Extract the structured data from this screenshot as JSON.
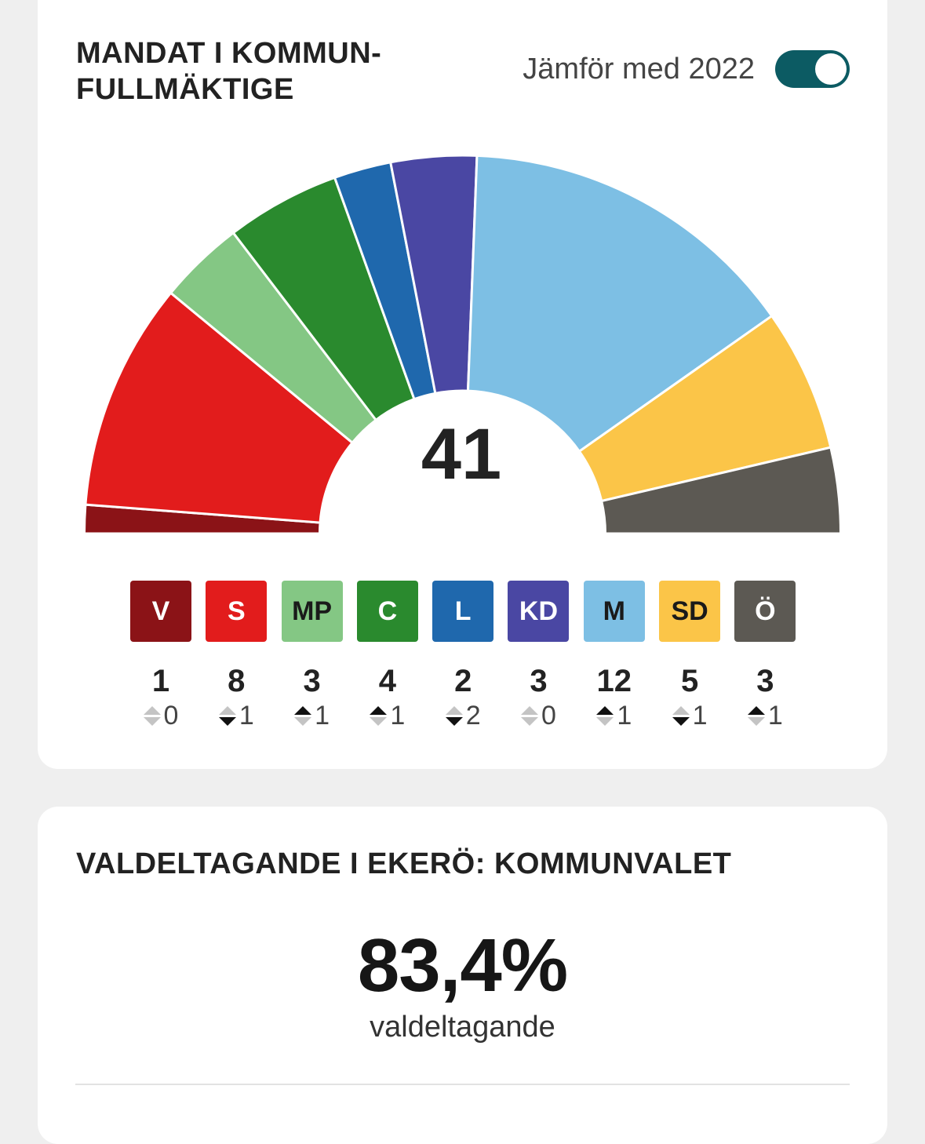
{
  "card1": {
    "title": "MANDAT I KOMMUN-FULLMÄKTIGE",
    "compare_label": "Jämför med 2022",
    "compare_on": true,
    "toggle_color": "#0c5b63"
  },
  "chart_data": {
    "type": "parliament",
    "total_seats": "41",
    "parties": [
      {
        "name": "V",
        "seats": 1,
        "change": "0",
        "direction": "none",
        "color": "#8b1317",
        "text_color": "#ffffff"
      },
      {
        "name": "S",
        "seats": 8,
        "change": "1",
        "direction": "down",
        "color": "#e21c1c",
        "text_color": "#ffffff"
      },
      {
        "name": "MP",
        "seats": 3,
        "change": "1",
        "direction": "up",
        "color": "#84c784",
        "text_color": "#1a1a1a"
      },
      {
        "name": "C",
        "seats": 4,
        "change": "1",
        "direction": "up",
        "color": "#2a8a2e",
        "text_color": "#ffffff"
      },
      {
        "name": "L",
        "seats": 2,
        "change": "2",
        "direction": "down",
        "color": "#1f68ad",
        "text_color": "#ffffff"
      },
      {
        "name": "KD",
        "seats": 3,
        "change": "0",
        "direction": "none",
        "color": "#4a47a3",
        "text_color": "#ffffff"
      },
      {
        "name": "M",
        "seats": 12,
        "change": "1",
        "direction": "up",
        "color": "#7dbfe4",
        "text_color": "#1a1a1a"
      },
      {
        "name": "SD",
        "seats": 5,
        "change": "1",
        "direction": "down",
        "color": "#fbc548",
        "text_color": "#1a1a1a"
      },
      {
        "name": "Ö",
        "seats": 3,
        "change": "1",
        "direction": "up",
        "color": "#5c5953",
        "text_color": "#ffffff"
      }
    ]
  },
  "card2": {
    "title": "VALDELTAGANDE I EKERÖ: KOMMUNVALET",
    "turnout_value": "83,4%",
    "turnout_label": "valdeltagande"
  }
}
